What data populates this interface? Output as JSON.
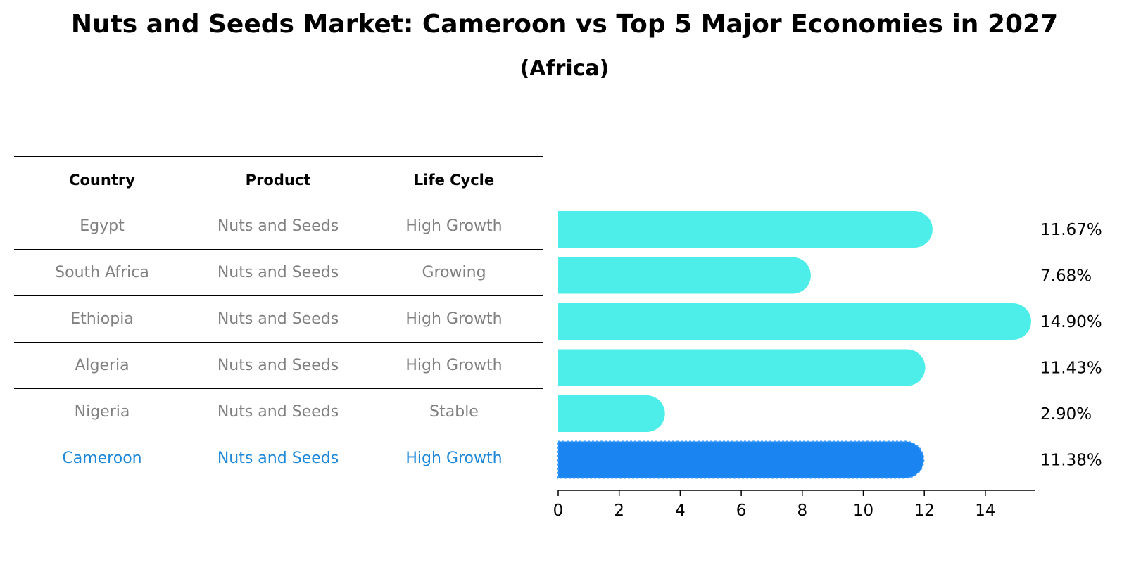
{
  "chart_data": {
    "type": "bar",
    "orientation": "horizontal",
    "title": "Nuts and Seeds Market: Cameroon vs Top 5 Major Economies in 2027",
    "subtitle": "(Africa)",
    "table": {
      "headers": [
        "Country",
        "Product",
        "Life Cycle"
      ],
      "rows": [
        [
          "Egypt",
          "Nuts and Seeds",
          "High Growth"
        ],
        [
          "South Africa",
          "Nuts and Seeds",
          "Growing"
        ],
        [
          "Ethiopia",
          "Nuts and Seeds",
          "High Growth"
        ],
        [
          "Algeria",
          "Nuts and Seeds",
          "High Growth"
        ],
        [
          "Nigeria",
          "Nuts and Seeds",
          "Stable"
        ],
        [
          "Cameroon",
          "Nuts and Seeds",
          "High Growth"
        ]
      ],
      "highlight_row": 5
    },
    "categories": [
      "Egypt",
      "South Africa",
      "Ethiopia",
      "Algeria",
      "Nigeria",
      "Cameroon"
    ],
    "values": [
      11.67,
      7.68,
      14.9,
      11.43,
      2.9,
      11.38
    ],
    "value_labels": [
      "11.67%",
      "7.68%",
      "14.90%",
      "11.43%",
      "2.90%",
      "11.38%"
    ],
    "xlim": [
      0,
      15.6
    ],
    "xticks": [
      0,
      2,
      4,
      6,
      8,
      10,
      12,
      14
    ],
    "colors": {
      "bar": "#4deeea",
      "highlight_bar": "#1a85f0",
      "highlight_text": "#1f88d9",
      "table_text": "#808080"
    }
  }
}
